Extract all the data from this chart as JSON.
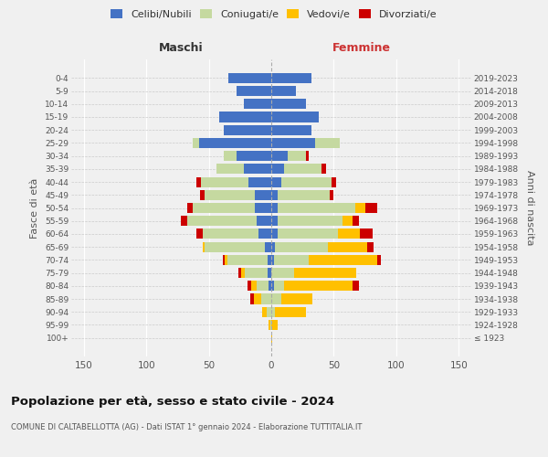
{
  "age_groups": [
    "100+",
    "95-99",
    "90-94",
    "85-89",
    "80-84",
    "75-79",
    "70-74",
    "65-69",
    "60-64",
    "55-59",
    "50-54",
    "45-49",
    "40-44",
    "35-39",
    "30-34",
    "25-29",
    "20-24",
    "15-19",
    "10-14",
    "5-9",
    "0-4"
  ],
  "birth_years": [
    "≤ 1923",
    "1924-1928",
    "1929-1933",
    "1934-1938",
    "1939-1943",
    "1944-1948",
    "1949-1953",
    "1954-1958",
    "1959-1963",
    "1964-1968",
    "1969-1973",
    "1974-1978",
    "1979-1983",
    "1984-1988",
    "1989-1993",
    "1994-1998",
    "1999-2003",
    "2004-2008",
    "2009-2013",
    "2014-2018",
    "2019-2023"
  ],
  "maschi": {
    "celibi": [
      0,
      0,
      0,
      0,
      2,
      3,
      3,
      5,
      10,
      12,
      13,
      13,
      18,
      22,
      28,
      58,
      38,
      42,
      22,
      28,
      34
    ],
    "coniugati": [
      0,
      1,
      4,
      8,
      10,
      18,
      32,
      48,
      45,
      55,
      50,
      40,
      38,
      22,
      10,
      5,
      0,
      0,
      0,
      0,
      0
    ],
    "vedovi": [
      0,
      1,
      3,
      6,
      4,
      3,
      2,
      2,
      0,
      0,
      0,
      0,
      0,
      0,
      0,
      0,
      0,
      0,
      0,
      0,
      0
    ],
    "divorziati": [
      0,
      0,
      0,
      3,
      3,
      2,
      2,
      0,
      5,
      5,
      4,
      4,
      4,
      0,
      0,
      0,
      0,
      0,
      0,
      0,
      0
    ]
  },
  "femmine": {
    "nubili": [
      0,
      0,
      0,
      0,
      2,
      0,
      2,
      3,
      5,
      5,
      5,
      5,
      8,
      10,
      13,
      35,
      32,
      38,
      28,
      20,
      32
    ],
    "coniugate": [
      0,
      0,
      3,
      8,
      8,
      18,
      28,
      42,
      48,
      52,
      62,
      42,
      40,
      30,
      15,
      20,
      0,
      0,
      0,
      0,
      0
    ],
    "vedove": [
      1,
      5,
      25,
      25,
      55,
      50,
      55,
      32,
      18,
      8,
      8,
      0,
      0,
      0,
      0,
      0,
      0,
      0,
      0,
      0,
      0
    ],
    "divorziate": [
      0,
      0,
      0,
      0,
      5,
      0,
      3,
      5,
      10,
      5,
      10,
      3,
      4,
      4,
      2,
      0,
      0,
      0,
      0,
      0,
      0
    ]
  },
  "colors": {
    "celibi_nubili": "#4472c4",
    "coniugati": "#c5d9a0",
    "vedovi": "#ffc000",
    "divorziati": "#cc0000"
  },
  "title": "Popolazione per età, sesso e stato civile - 2024",
  "subtitle": "COMUNE DI CALTABELLOTTA (AG) - Dati ISTAT 1° gennaio 2024 - Elaborazione TUTTITALIA.IT",
  "label_maschi": "Maschi",
  "label_femmine": "Femmine",
  "ylabel_left": "Fasce di età",
  "ylabel_right": "Anni di nascita",
  "xlim": 160,
  "background_color": "#f0f0f0",
  "legend_labels": [
    "Celibi/Nubili",
    "Coniugati/e",
    "Vedovi/e",
    "Divorziati/e"
  ]
}
